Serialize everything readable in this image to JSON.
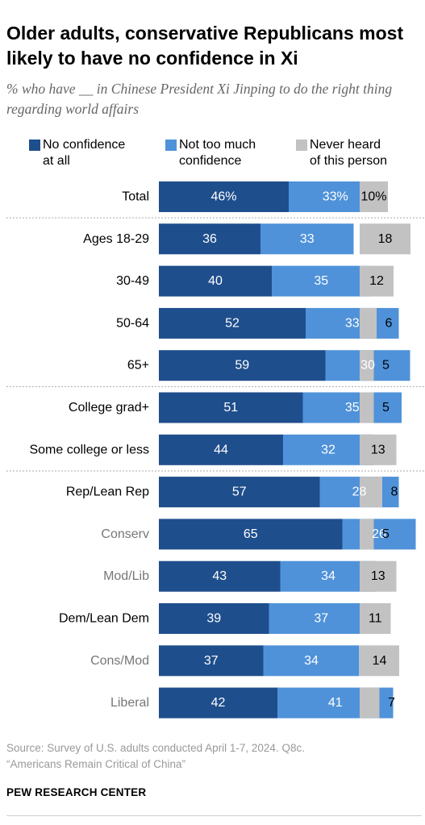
{
  "header": {
    "title": "Older adults, conservative Republicans most likely to have no confidence in Xi",
    "subtitle": "% who have __ in Chinese President Xi Jinping to do the right thing regarding world affairs"
  },
  "legend": [
    {
      "label_line1": "No confidence",
      "label_line2": "at all",
      "color": "#1f4e8c"
    },
    {
      "label_line1": "Not too much",
      "label_line2": "confidence",
      "color": "#4f92d9"
    },
    {
      "label_line1": "Never heard",
      "label_line2": "of this person",
      "color": "#c2c2c2"
    }
  ],
  "chart_data": {
    "type": "bar",
    "orientation": "horizontal-stacked",
    "series": [
      {
        "name": "No confidence at all",
        "color": "#1f4e8c"
      },
      {
        "name": "Not too much confidence",
        "color": "#4f92d9"
      },
      {
        "name": "Never heard of this person",
        "color": "#c2c2c2"
      }
    ],
    "rows": [
      {
        "label": "Total",
        "label_color": "#000000",
        "no_conf": 46,
        "not_much": 33,
        "never_heard": 10,
        "no_conf_text": "46%",
        "not_much_text": "33%",
        "never_text": "10%",
        "group": 0
      },
      {
        "label": "Ages 18-29",
        "label_color": "#000000",
        "no_conf": 36,
        "not_much": 33,
        "never_heard": 18,
        "no_conf_text": "36",
        "not_much_text": "33",
        "never_text": "18",
        "group": 1
      },
      {
        "label": "30-49",
        "label_color": "#000000",
        "no_conf": 40,
        "not_much": 35,
        "never_heard": 12,
        "no_conf_text": "40",
        "not_much_text": "35",
        "never_text": "12",
        "group": 1
      },
      {
        "label": "50-64",
        "label_color": "#000000",
        "no_conf": 52,
        "not_much": 33,
        "never_heard": 6,
        "no_conf_text": "52",
        "not_much_text": "33",
        "never_text": "6",
        "group": 1
      },
      {
        "label": "65+",
        "label_color": "#000000",
        "no_conf": 59,
        "not_much": 30,
        "never_heard": 5,
        "no_conf_text": "59",
        "not_much_text": "30",
        "never_text": "5",
        "group": 1
      },
      {
        "label": "College grad+",
        "label_color": "#000000",
        "no_conf": 51,
        "not_much": 35,
        "never_heard": 5,
        "no_conf_text": "51",
        "not_much_text": "35",
        "never_text": "5",
        "group": 2
      },
      {
        "label": "Some college or less",
        "label_color": "#000000",
        "no_conf": 44,
        "not_much": 32,
        "never_heard": 13,
        "no_conf_text": "44",
        "not_much_text": "32",
        "never_text": "13",
        "group": 2
      },
      {
        "label": "Rep/Lean Rep",
        "label_color": "#000000",
        "no_conf": 57,
        "not_much": 28,
        "never_heard": 8,
        "no_conf_text": "57",
        "not_much_text": "28",
        "never_text": "8",
        "group": 3
      },
      {
        "label": "Conserv",
        "label_color": "#777777",
        "no_conf": 65,
        "not_much": 26,
        "never_heard": 5,
        "no_conf_text": "65",
        "not_much_text": "26",
        "never_text": "5",
        "group": 3
      },
      {
        "label": "Mod/Lib",
        "label_color": "#777777",
        "no_conf": 43,
        "not_much": 34,
        "never_heard": 13,
        "no_conf_text": "43",
        "not_much_text": "34",
        "never_text": "13",
        "group": 3
      },
      {
        "label": "Dem/Lean Dem",
        "label_color": "#000000",
        "no_conf": 39,
        "not_much": 37,
        "never_heard": 11,
        "no_conf_text": "39",
        "not_much_text": "37",
        "never_text": "11",
        "group": 3
      },
      {
        "label": "Cons/Mod",
        "label_color": "#777777",
        "no_conf": 37,
        "not_much": 34,
        "never_heard": 14,
        "no_conf_text": "37",
        "not_much_text": "34",
        "never_text": "14",
        "group": 3
      },
      {
        "label": "Liberal",
        "label_color": "#777777",
        "no_conf": 42,
        "not_much": 41,
        "never_heard": 7,
        "no_conf_text": "42",
        "not_much_text": "41",
        "never_text": "7",
        "group": 3
      }
    ],
    "xlim": [
      0,
      100
    ],
    "grid": false,
    "legend_position": "top"
  },
  "footer": {
    "source_line1": "Source: Survey of U.S. adults conducted April 1-7, 2024. Q8c.",
    "source_line2": "“Americans Remain Critical of China”",
    "org": "PEW RESEARCH CENTER"
  }
}
